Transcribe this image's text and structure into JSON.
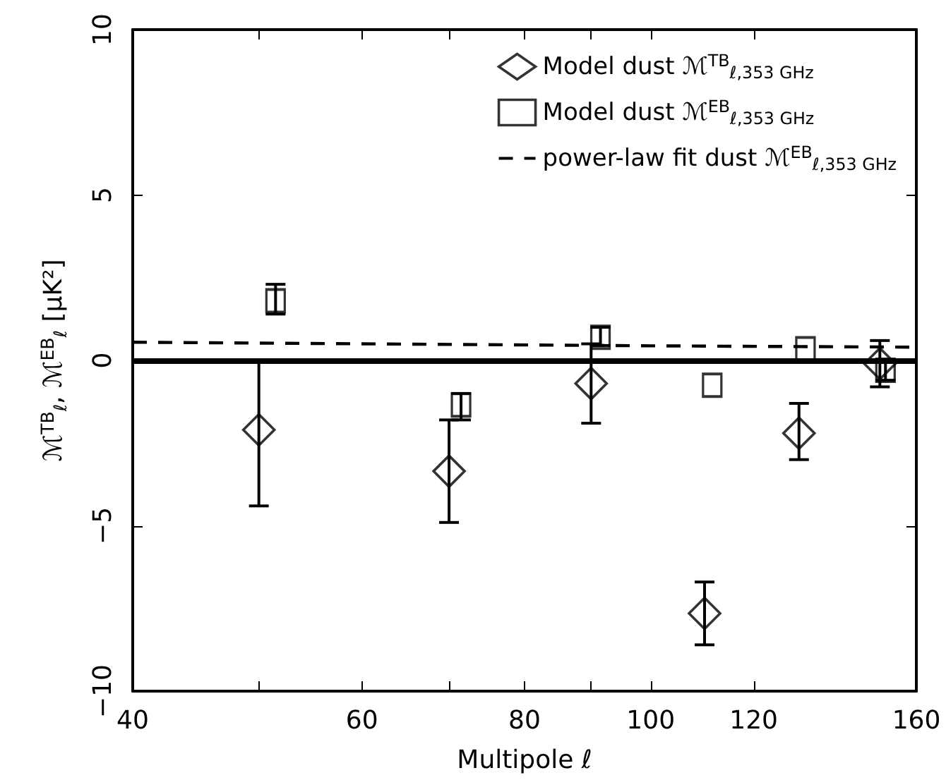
{
  "chart_data": {
    "type": "scatter",
    "xlabel": "Multipole ℓ",
    "ylabel": "ℳ$^{TB}$$_{ℓ}$, ℳ$^{EB}$$_{ℓ}$ [μK²]",
    "log": "x",
    "xlim": [
      40,
      160
    ],
    "xticks": [
      40,
      {
        "value": 50,
        "label": null
      },
      60,
      {
        "value": 70,
        "label": null
      },
      80,
      {
        "value": 90,
        "label": null
      },
      100,
      120,
      160
    ],
    "ylim": [
      -10,
      10
    ],
    "yticks": [
      {
        "value": -10,
        "label": "−10"
      },
      {
        "value": -5,
        "label": "−5"
      },
      0,
      5,
      10
    ],
    "grid": false,
    "legend": "top right",
    "series": [
      {
        "name": "Model dust ℳ$^{TB}$$_{ℓ,353 GHz}$",
        "marker": "diamond",
        "color": "#000000",
        "x": [
          50,
          70,
          90,
          110,
          130,
          150
        ],
        "values": [
          -2.1,
          -3.35,
          -0.7,
          -7.65,
          -2.2,
          -0.1
        ],
        "errors": [
          [
            -4.4,
            0.0
          ],
          [
            -4.9,
            -1.8
          ],
          [
            -1.9,
            0.5
          ],
          [
            -8.6,
            -6.7
          ],
          [
            -3.0,
            -1.3
          ],
          [
            -0.8,
            0.6
          ]
        ]
      },
      {
        "name": "Model dust ℳ$^{EB}$$_{ℓ,353 GHz}$",
        "marker": "square",
        "color": "#000000",
        "x": [
          51.5,
          71.5,
          91.5,
          111.5,
          131.5,
          151.5
        ],
        "values": [
          1.8,
          -1.35,
          0.7,
          -0.75,
          0.35,
          -0.3
        ],
        "errors": [
          [
            1.4,
            2.3
          ],
          [
            -1.8,
            -1.0
          ],
          [
            0.45,
            1.0
          ],
          null,
          null,
          [
            -0.6,
            0.0
          ]
        ]
      },
      {
        "name": "power-law fit dust ℳ$^{EB}$$_{ℓ,353 GHz}$",
        "type": "line",
        "marker": "none",
        "line_style": "dashed",
        "color": "#000000",
        "x": [
          40,
          100,
          160
        ],
        "values": [
          0.55,
          0.44,
          0.4
        ]
      }
    ],
    "ref_lines": [
      {
        "axis": "y",
        "value": 0,
        "color": "#000000",
        "line_style": "solid"
      }
    ]
  }
}
